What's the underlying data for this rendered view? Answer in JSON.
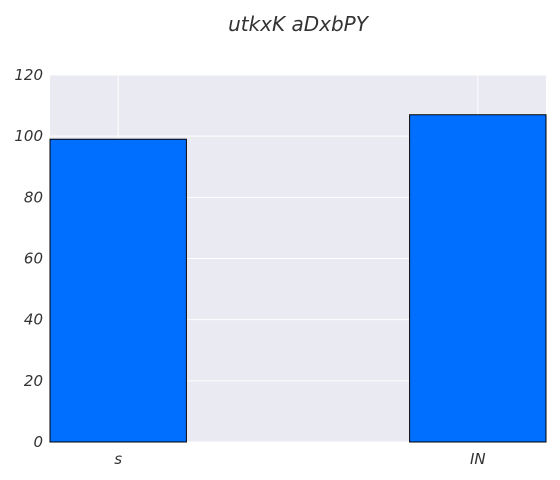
{
  "chart_data": {
    "type": "bar",
    "title": "utkxK aDxbPY",
    "xlabel": "",
    "ylabel": "",
    "categories": [
      "s",
      "IN"
    ],
    "values": [
      99,
      107
    ],
    "ylim": [
      0,
      120
    ],
    "yticks": [
      "0",
      "20",
      "40",
      "60",
      "80",
      "100",
      "120"
    ],
    "grid": true,
    "legend": "none",
    "colors": {
      "bar": "#006fff",
      "plot_background": "#eaeaf2",
      "grid": "#ffffff",
      "text": "#333333"
    }
  }
}
